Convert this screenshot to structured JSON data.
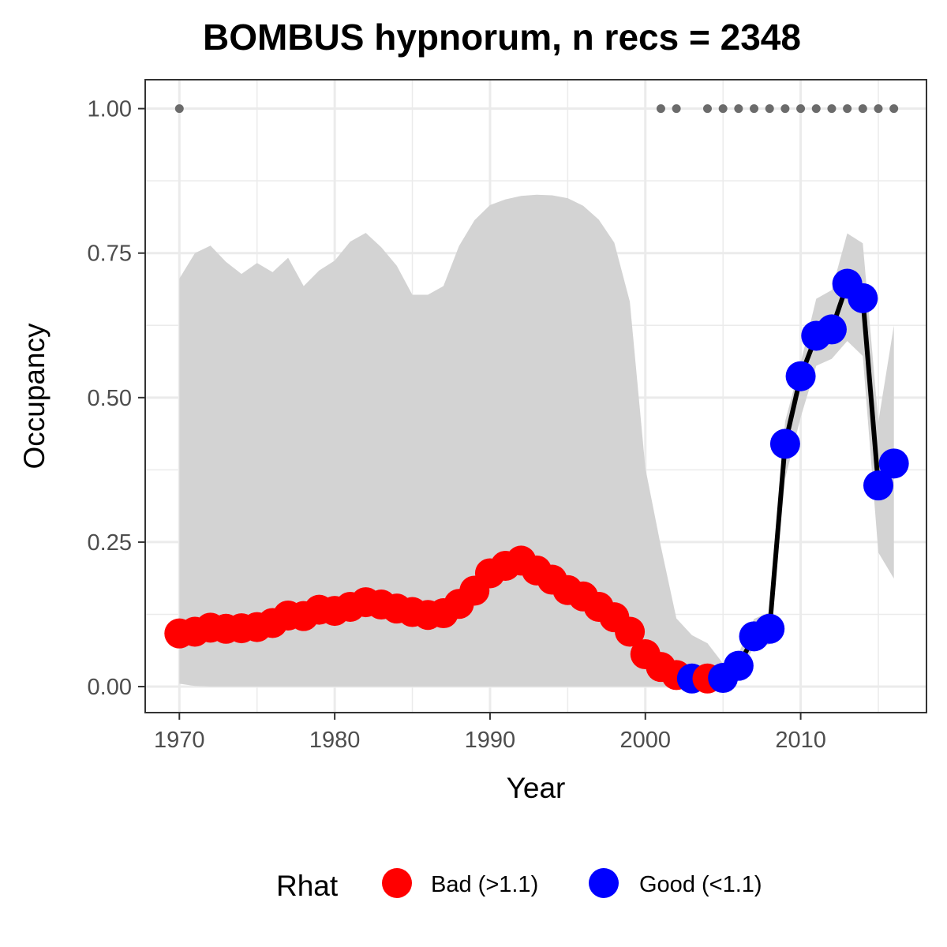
{
  "chart_data": {
    "type": "line",
    "title": "BOMBUS hypnorum, n recs = 2348",
    "xlabel": "Year",
    "ylabel": "Occupancy",
    "xlim": [
      1967.8,
      2018.1
    ],
    "ylim": [
      -0.045,
      1.05
    ],
    "x_ticks": [
      1970,
      1980,
      1990,
      2000,
      2010
    ],
    "x_tick_labels": [
      "1970",
      "1980",
      "1990",
      "2000",
      "2010"
    ],
    "y_ticks": [
      0,
      0.25,
      0.5,
      0.75,
      1.0
    ],
    "y_tick_labels": [
      "0.00",
      "0.25",
      "0.50",
      "0.75",
      "1.00"
    ],
    "grid": true,
    "legend": {
      "title": "Rhat",
      "position": "bottom",
      "entries": [
        {
          "key": "bad",
          "label": "Bad (>1.1)",
          "color": "#ff0000"
        },
        {
          "key": "good",
          "label": "Good (<1.1)",
          "color": "#0000ff"
        }
      ]
    },
    "colors": {
      "bad": "#ff0000",
      "good": "#0000ff",
      "ribbon": "#d3d3d3",
      "line": "#000000",
      "record_dot": "#6b6b6b"
    },
    "x": [
      1970,
      1971,
      1972,
      1973,
      1974,
      1975,
      1976,
      1977,
      1978,
      1979,
      1980,
      1981,
      1982,
      1983,
      1984,
      1985,
      1986,
      1987,
      1988,
      1989,
      1990,
      1991,
      1992,
      1993,
      1994,
      1995,
      1996,
      1997,
      1998,
      1999,
      2000,
      2001,
      2002,
      2003,
      2004,
      2005,
      2006,
      2007,
      2008,
      2009,
      2010,
      2011,
      2012,
      2013,
      2014,
      2015,
      2016
    ],
    "occupancy": [
      0.092,
      0.095,
      0.102,
      0.1,
      0.101,
      0.103,
      0.11,
      0.123,
      0.122,
      0.133,
      0.131,
      0.138,
      0.146,
      0.142,
      0.135,
      0.129,
      0.124,
      0.127,
      0.143,
      0.166,
      0.196,
      0.209,
      0.218,
      0.201,
      0.185,
      0.167,
      0.156,
      0.138,
      0.12,
      0.095,
      0.056,
      0.034,
      0.02,
      0.014,
      0.014,
      0.015,
      0.036,
      0.087,
      0.1,
      0.42,
      0.537,
      0.607,
      0.618,
      0.697,
      0.672,
      0.348,
      0.386
    ],
    "lower": [
      0.005,
      0.001,
      0,
      0,
      0,
      0,
      0,
      0,
      0,
      0,
      0,
      0,
      0,
      0,
      0,
      0,
      0,
      0,
      0,
      0,
      0,
      0,
      0,
      0,
      0,
      0,
      0,
      0,
      0,
      0,
      0,
      0,
      0,
      0,
      0,
      0,
      0.021,
      0.069,
      0.073,
      0.36,
      0.466,
      0.555,
      0.567,
      0.598,
      0.572,
      0.232,
      0.187
    ],
    "upper": [
      0.706,
      0.75,
      0.763,
      0.735,
      0.714,
      0.733,
      0.717,
      0.742,
      0.693,
      0.72,
      0.737,
      0.77,
      0.785,
      0.76,
      0.728,
      0.678,
      0.678,
      0.693,
      0.762,
      0.807,
      0.833,
      0.843,
      0.849,
      0.851,
      0.85,
      0.845,
      0.832,
      0.808,
      0.768,
      0.666,
      0.378,
      0.243,
      0.118,
      0.089,
      0.075,
      0.04,
      0.057,
      0.117,
      0.129,
      0.459,
      0.56,
      0.671,
      0.686,
      0.784,
      0.767,
      0.458,
      0.625
    ],
    "rhat_status": [
      "bad",
      "bad",
      "bad",
      "bad",
      "bad",
      "bad",
      "bad",
      "bad",
      "bad",
      "bad",
      "bad",
      "bad",
      "bad",
      "bad",
      "bad",
      "bad",
      "bad",
      "bad",
      "bad",
      "bad",
      "bad",
      "bad",
      "bad",
      "bad",
      "bad",
      "bad",
      "bad",
      "bad",
      "bad",
      "bad",
      "bad",
      "bad",
      "bad",
      "good",
      "bad",
      "good",
      "good",
      "good",
      "good",
      "good",
      "good",
      "good",
      "good",
      "good",
      "good",
      "good",
      "good"
    ],
    "record_years": [
      1970,
      2001,
      2002,
      2004,
      2005,
      2006,
      2007,
      2008,
      2009,
      2010,
      2011,
      2012,
      2013,
      2014,
      2015,
      2016
    ],
    "record_y": 1.0,
    "line_segment_start_year": 2005
  }
}
